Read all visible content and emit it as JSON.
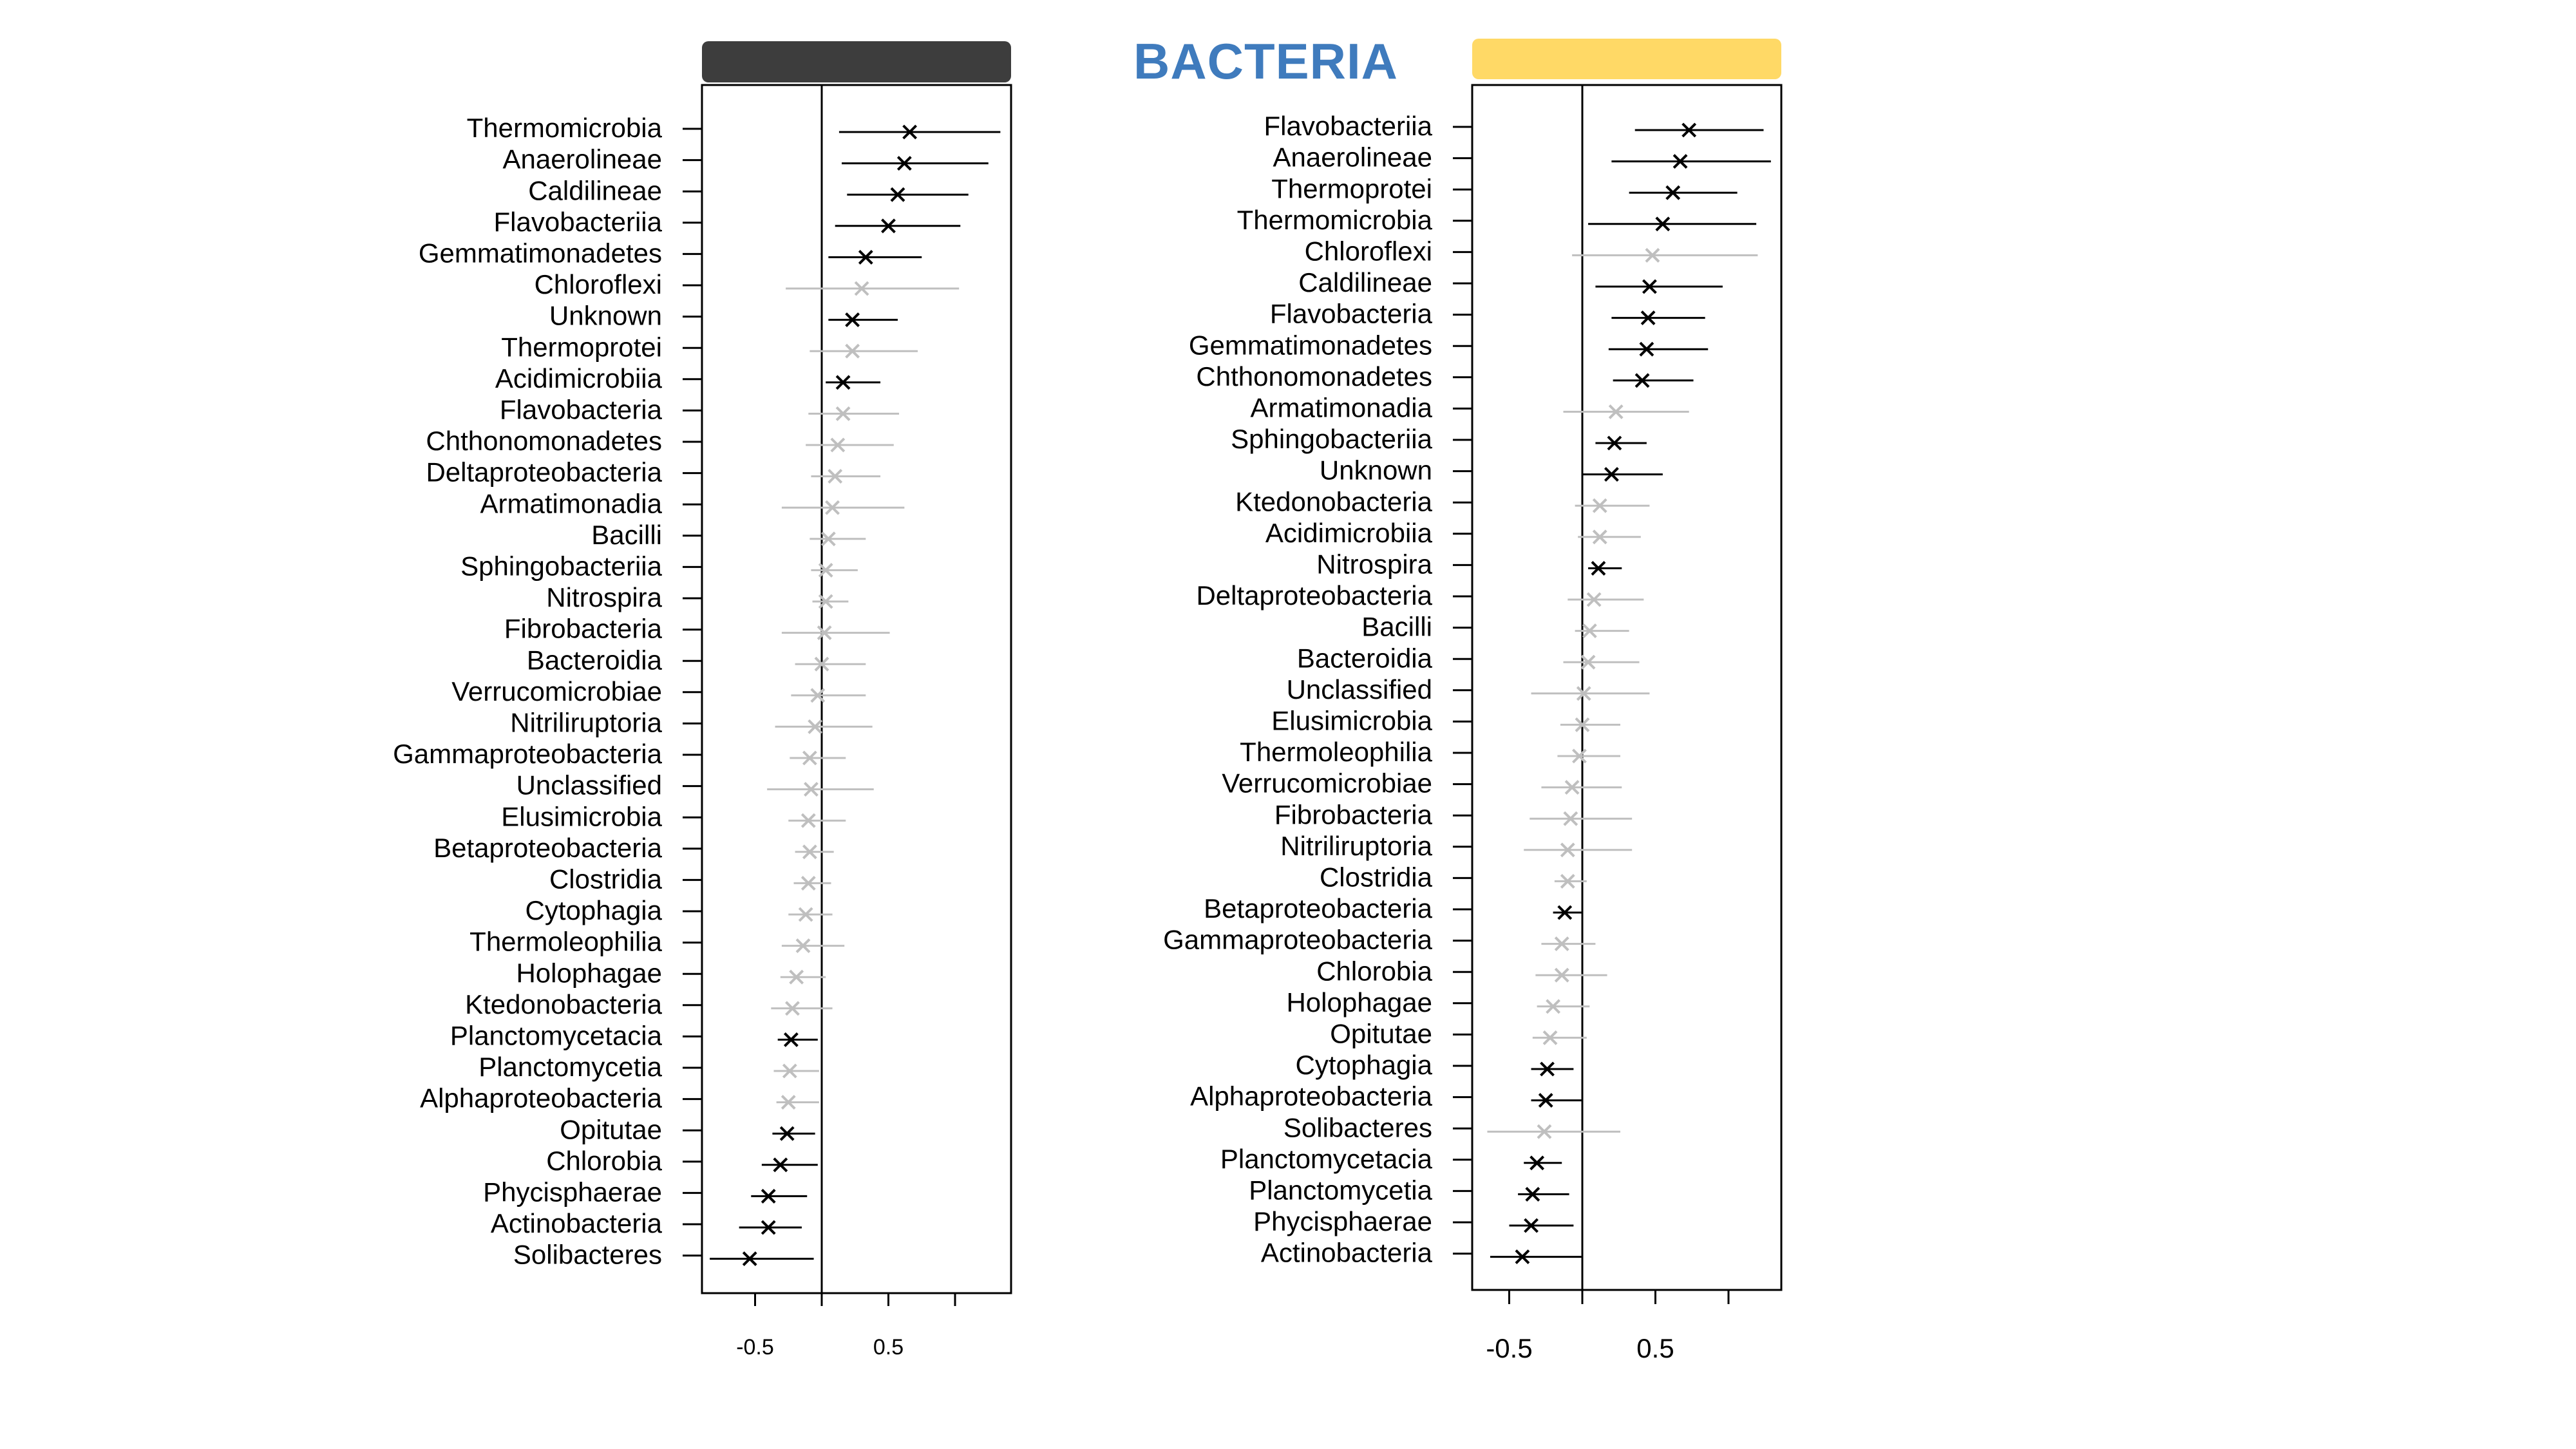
{
  "title": "BACTERIA",
  "colors": {
    "title": "#3f7bbd",
    "left_header": "#3d3d3d",
    "right_header": "#ffd966",
    "significant": "#000000",
    "nonsignificant": "#bfbfbf"
  },
  "chart_data": [
    {
      "type": "forest",
      "panel": "left",
      "header_color": "#3d3d3d",
      "xlim": [
        -0.9,
        1.45
      ],
      "xticks": [
        -0.5,
        0,
        0.5,
        1
      ],
      "tick_labels": [
        "-0.5",
        "0.5"
      ],
      "reference_line": 0,
      "rows": [
        {
          "label": "Thermomicrobia",
          "est": 0.66,
          "lo": 0.13,
          "hi": 1.34,
          "sig": true
        },
        {
          "label": "Anaerolineae",
          "est": 0.62,
          "lo": 0.15,
          "hi": 1.25,
          "sig": true
        },
        {
          "label": "Caldilineae",
          "est": 0.57,
          "lo": 0.19,
          "hi": 1.1,
          "sig": true
        },
        {
          "label": "Flavobacteriia",
          "est": 0.5,
          "lo": 0.1,
          "hi": 1.04,
          "sig": true
        },
        {
          "label": "Gemmatimonadetes",
          "est": 0.33,
          "lo": 0.05,
          "hi": 0.75,
          "sig": true
        },
        {
          "label": "Chloroflexi",
          "est": 0.3,
          "lo": -0.27,
          "hi": 1.03,
          "sig": false
        },
        {
          "label": "Unknown",
          "est": 0.23,
          "lo": 0.05,
          "hi": 0.57,
          "sig": true
        },
        {
          "label": "Thermoprotei",
          "est": 0.23,
          "lo": -0.09,
          "hi": 0.72,
          "sig": false
        },
        {
          "label": "Acidimicrobiia",
          "est": 0.16,
          "lo": 0.03,
          "hi": 0.44,
          "sig": true
        },
        {
          "label": "Flavobacteria",
          "est": 0.16,
          "lo": -0.1,
          "hi": 0.58,
          "sig": false
        },
        {
          "label": "Chthonomonadetes",
          "est": 0.12,
          "lo": -0.12,
          "hi": 0.54,
          "sig": false
        },
        {
          "label": "Deltaproteobacteria",
          "est": 0.1,
          "lo": -0.08,
          "hi": 0.44,
          "sig": false
        },
        {
          "label": "Armatimonadia",
          "est": 0.08,
          "lo": -0.3,
          "hi": 0.62,
          "sig": false
        },
        {
          "label": "Bacilli",
          "est": 0.05,
          "lo": -0.09,
          "hi": 0.33,
          "sig": false
        },
        {
          "label": "Sphingobacteriia",
          "est": 0.03,
          "lo": -0.08,
          "hi": 0.27,
          "sig": false
        },
        {
          "label": "Nitrospira",
          "est": 0.03,
          "lo": -0.07,
          "hi": 0.2,
          "sig": false
        },
        {
          "label": "Fibrobacteria",
          "est": 0.02,
          "lo": -0.3,
          "hi": 0.51,
          "sig": false
        },
        {
          "label": "Bacteroidia",
          "est": 0.0,
          "lo": -0.2,
          "hi": 0.33,
          "sig": false
        },
        {
          "label": "Verrucomicrobiae",
          "est": -0.03,
          "lo": -0.23,
          "hi": 0.33,
          "sig": false
        },
        {
          "label": "Nitriliruptoria",
          "est": -0.05,
          "lo": -0.35,
          "hi": 0.38,
          "sig": false
        },
        {
          "label": "Gammaproteobacteria",
          "est": -0.09,
          "lo": -0.24,
          "hi": 0.18,
          "sig": false
        },
        {
          "label": "Unclassified",
          "est": -0.08,
          "lo": -0.41,
          "hi": 0.39,
          "sig": false
        },
        {
          "label": "Elusimicrobia",
          "est": -0.1,
          "lo": -0.25,
          "hi": 0.18,
          "sig": false
        },
        {
          "label": "Betaproteobacteria",
          "est": -0.09,
          "lo": -0.2,
          "hi": 0.09,
          "sig": false
        },
        {
          "label": "Clostridia",
          "est": -0.1,
          "lo": -0.21,
          "hi": 0.07,
          "sig": false
        },
        {
          "label": "Cytophagia",
          "est": -0.12,
          "lo": -0.25,
          "hi": 0.08,
          "sig": false
        },
        {
          "label": "Thermoleophilia",
          "est": -0.14,
          "lo": -0.3,
          "hi": 0.17,
          "sig": false
        },
        {
          "label": "Holophagae",
          "est": -0.19,
          "lo": -0.31,
          "hi": 0.03,
          "sig": false
        },
        {
          "label": "Ktedonobacteria",
          "est": -0.22,
          "lo": -0.38,
          "hi": 0.08,
          "sig": false
        },
        {
          "label": "Planctomycetacia",
          "est": -0.23,
          "lo": -0.33,
          "hi": -0.03,
          "sig": true
        },
        {
          "label": "Planctomycetia",
          "est": -0.24,
          "lo": -0.36,
          "hi": -0.02,
          "sig": false
        },
        {
          "label": "Alphaproteobacteria",
          "est": -0.25,
          "lo": -0.34,
          "hi": -0.02,
          "sig": false
        },
        {
          "label": "Opitutae",
          "est": -0.26,
          "lo": -0.37,
          "hi": -0.05,
          "sig": true
        },
        {
          "label": "Chlorobia",
          "est": -0.31,
          "lo": -0.45,
          "hi": -0.03,
          "sig": true
        },
        {
          "label": "Phycisphaerae",
          "est": -0.4,
          "lo": -0.53,
          "hi": -0.11,
          "sig": true
        },
        {
          "label": "Actinobacteria",
          "est": -0.4,
          "lo": -0.62,
          "hi": -0.15,
          "sig": true
        },
        {
          "label": "Solibacteres",
          "est": -0.54,
          "lo": -0.84,
          "hi": -0.06,
          "sig": true
        }
      ]
    },
    {
      "type": "forest",
      "panel": "right",
      "header_color": "#ffd966",
      "xlim": [
        -0.75,
        1.35
      ],
      "xticks": [
        -0.5,
        0,
        0.5,
        1
      ],
      "tick_labels": [
        "-0.5",
        "0.5"
      ],
      "reference_line": 0,
      "rows": [
        {
          "label": "Flavobacteriia",
          "est": 0.73,
          "lo": 0.36,
          "hi": 1.24,
          "sig": true
        },
        {
          "label": "Anaerolineae",
          "est": 0.67,
          "lo": 0.2,
          "hi": 1.29,
          "sig": true
        },
        {
          "label": "Thermoprotei",
          "est": 0.62,
          "lo": 0.32,
          "hi": 1.06,
          "sig": true
        },
        {
          "label": "Thermomicrobia",
          "est": 0.55,
          "lo": 0.04,
          "hi": 1.19,
          "sig": true
        },
        {
          "label": "Chloroflexi",
          "est": 0.48,
          "lo": -0.07,
          "hi": 1.2,
          "sig": false
        },
        {
          "label": "Caldilineae",
          "est": 0.46,
          "lo": 0.09,
          "hi": 0.96,
          "sig": true
        },
        {
          "label": "Flavobacteria",
          "est": 0.45,
          "lo": 0.2,
          "hi": 0.84,
          "sig": true
        },
        {
          "label": "Gemmatimonadetes",
          "est": 0.44,
          "lo": 0.18,
          "hi": 0.86,
          "sig": true
        },
        {
          "label": "Chthonomonadetes",
          "est": 0.41,
          "lo": 0.21,
          "hi": 0.76,
          "sig": true
        },
        {
          "label": "Armatimonadia",
          "est": 0.23,
          "lo": -0.13,
          "hi": 0.73,
          "sig": false
        },
        {
          "label": "Sphingobacteriia",
          "est": 0.22,
          "lo": 0.09,
          "hi": 0.44,
          "sig": true
        },
        {
          "label": "Unknown",
          "est": 0.2,
          "lo": 0.0,
          "hi": 0.55,
          "sig": true
        },
        {
          "label": "Ktedonobacteria",
          "est": 0.12,
          "lo": -0.05,
          "hi": 0.46,
          "sig": false
        },
        {
          "label": "Acidimicrobiia",
          "est": 0.12,
          "lo": -0.03,
          "hi": 0.4,
          "sig": false
        },
        {
          "label": "Nitrospira",
          "est": 0.11,
          "lo": 0.04,
          "hi": 0.27,
          "sig": true
        },
        {
          "label": "Deltaproteobacteria",
          "est": 0.08,
          "lo": -0.1,
          "hi": 0.42,
          "sig": false
        },
        {
          "label": "Bacilli",
          "est": 0.05,
          "lo": -0.05,
          "hi": 0.32,
          "sig": false
        },
        {
          "label": "Bacteroidia",
          "est": 0.04,
          "lo": -0.13,
          "hi": 0.39,
          "sig": false
        },
        {
          "label": "Unclassified",
          "est": 0.01,
          "lo": -0.35,
          "hi": 0.46,
          "sig": false
        },
        {
          "label": "Elusimicrobia",
          "est": 0.0,
          "lo": -0.15,
          "hi": 0.26,
          "sig": false
        },
        {
          "label": "Thermoleophilia",
          "est": -0.02,
          "lo": -0.17,
          "hi": 0.26,
          "sig": false
        },
        {
          "label": "Verrucomicrobiae",
          "est": -0.07,
          "lo": -0.28,
          "hi": 0.27,
          "sig": false
        },
        {
          "label": "Fibrobacteria",
          "est": -0.08,
          "lo": -0.36,
          "hi": 0.34,
          "sig": false
        },
        {
          "label": "Nitriliruptoria",
          "est": -0.1,
          "lo": -0.4,
          "hi": 0.34,
          "sig": false
        },
        {
          "label": "Clostridia",
          "est": -0.1,
          "lo": -0.19,
          "hi": 0.03,
          "sig": false
        },
        {
          "label": "Betaproteobacteria",
          "est": -0.12,
          "lo": -0.2,
          "hi": 0.0,
          "sig": true
        },
        {
          "label": "Gammaproteobacteria",
          "est": -0.14,
          "lo": -0.28,
          "hi": 0.09,
          "sig": false
        },
        {
          "label": "Chlorobia",
          "est": -0.14,
          "lo": -0.32,
          "hi": 0.17,
          "sig": false
        },
        {
          "label": "Holophagae",
          "est": -0.2,
          "lo": -0.31,
          "hi": 0.05,
          "sig": false
        },
        {
          "label": "Opitutae",
          "est": -0.22,
          "lo": -0.34,
          "hi": 0.03,
          "sig": false
        },
        {
          "label": "Cytophagia",
          "est": -0.24,
          "lo": -0.35,
          "hi": -0.06,
          "sig": true
        },
        {
          "label": "Alphaproteobacteria",
          "est": -0.25,
          "lo": -0.35,
          "hi": 0.0,
          "sig": true
        },
        {
          "label": "Solibacteres",
          "est": -0.26,
          "lo": -0.65,
          "hi": 0.26,
          "sig": false
        },
        {
          "label": "Planctomycetacia",
          "est": -0.31,
          "lo": -0.4,
          "hi": -0.14,
          "sig": true
        },
        {
          "label": "Planctomycetia",
          "est": -0.34,
          "lo": -0.44,
          "hi": -0.09,
          "sig": true
        },
        {
          "label": "Phycisphaerae",
          "est": -0.35,
          "lo": -0.5,
          "hi": -0.06,
          "sig": true
        },
        {
          "label": "Actinobacteria",
          "est": -0.41,
          "lo": -0.63,
          "hi": 0.0,
          "sig": true
        }
      ]
    }
  ]
}
